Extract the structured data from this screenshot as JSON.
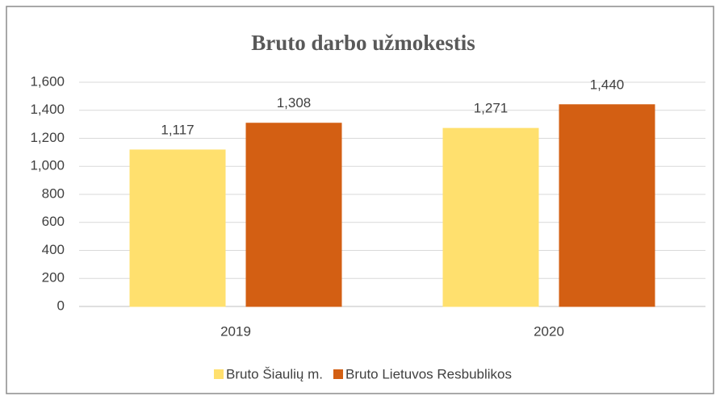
{
  "chart_data": {
    "type": "bar",
    "title": "Bruto darbo užmokestis",
    "categories": [
      "2019",
      "2020"
    ],
    "series": [
      {
        "name": "Bruto Šiaulių m.",
        "color": "#ffe06e",
        "values": [
          1117,
          1271
        ],
        "value_labels": [
          "1,117",
          "1,271"
        ]
      },
      {
        "name": "Bruto Lietuvos Resbublikos",
        "color": "#d35f13",
        "values": [
          1308,
          1440
        ],
        "value_labels": [
          "1,308",
          "1,440"
        ]
      }
    ],
    "ylim": [
      0,
      1600
    ],
    "yticks": [
      0,
      200,
      400,
      600,
      800,
      {
        "value": 1000,
        "label": "1,000"
      },
      {
        "value": 1200,
        "label": "1,200"
      },
      {
        "value": 1400,
        "label": "1,400"
      },
      {
        "value": 1600,
        "label": "1,600"
      }
    ],
    "grid": true,
    "legend": "bottom"
  }
}
